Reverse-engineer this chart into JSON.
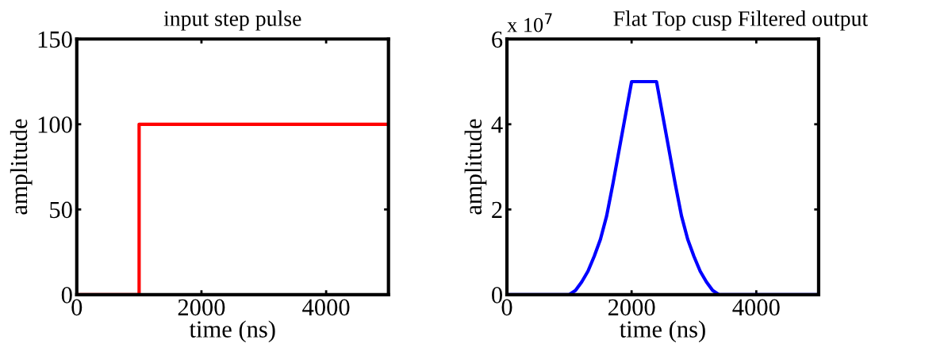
{
  "chart_data": [
    {
      "type": "line",
      "title": "input step pulse",
      "xlabel": "time (ns)",
      "ylabel": "amplitude",
      "xlim": [
        0,
        5000
      ],
      "ylim": [
        0,
        150
      ],
      "xticks": [
        0,
        2000,
        4000
      ],
      "yticks": [
        0,
        50,
        100,
        150
      ],
      "grid": false,
      "legend": false,
      "series": [
        {
          "color": "#ff0000",
          "x": [
            0,
            1000,
            1000,
            5000
          ],
          "values": [
            0,
            0,
            100,
            100
          ]
        }
      ]
    },
    {
      "type": "line",
      "title": "Flat Top cusp Filtered output",
      "xlabel": "time (ns)",
      "ylabel": "amplitude",
      "xlim": [
        0,
        5000
      ],
      "ylim": [
        0,
        6
      ],
      "xticks": [
        0,
        2000,
        4000
      ],
      "yticks": [
        0,
        2,
        4,
        6
      ],
      "grid": false,
      "legend": false,
      "annotations": [
        "x 10$^{7}$"
      ],
      "series": [
        {
          "color": "#0000ff",
          "x": [
            0,
            1000,
            1100,
            1200,
            1300,
            1400,
            1500,
            1600,
            1700,
            1800,
            1900,
            2000,
            2400,
            2500,
            2600,
            2700,
            2800,
            2900,
            3000,
            3100,
            3200,
            3300,
            3400,
            5000
          ],
          "values": [
            0,
            0,
            0.1,
            0.3,
            0.55,
            0.9,
            1.3,
            1.85,
            2.6,
            3.4,
            4.2,
            5.0,
            5.0,
            4.2,
            3.4,
            2.6,
            1.85,
            1.3,
            0.9,
            0.55,
            0.3,
            0.1,
            0,
            0
          ]
        }
      ]
    }
  ]
}
